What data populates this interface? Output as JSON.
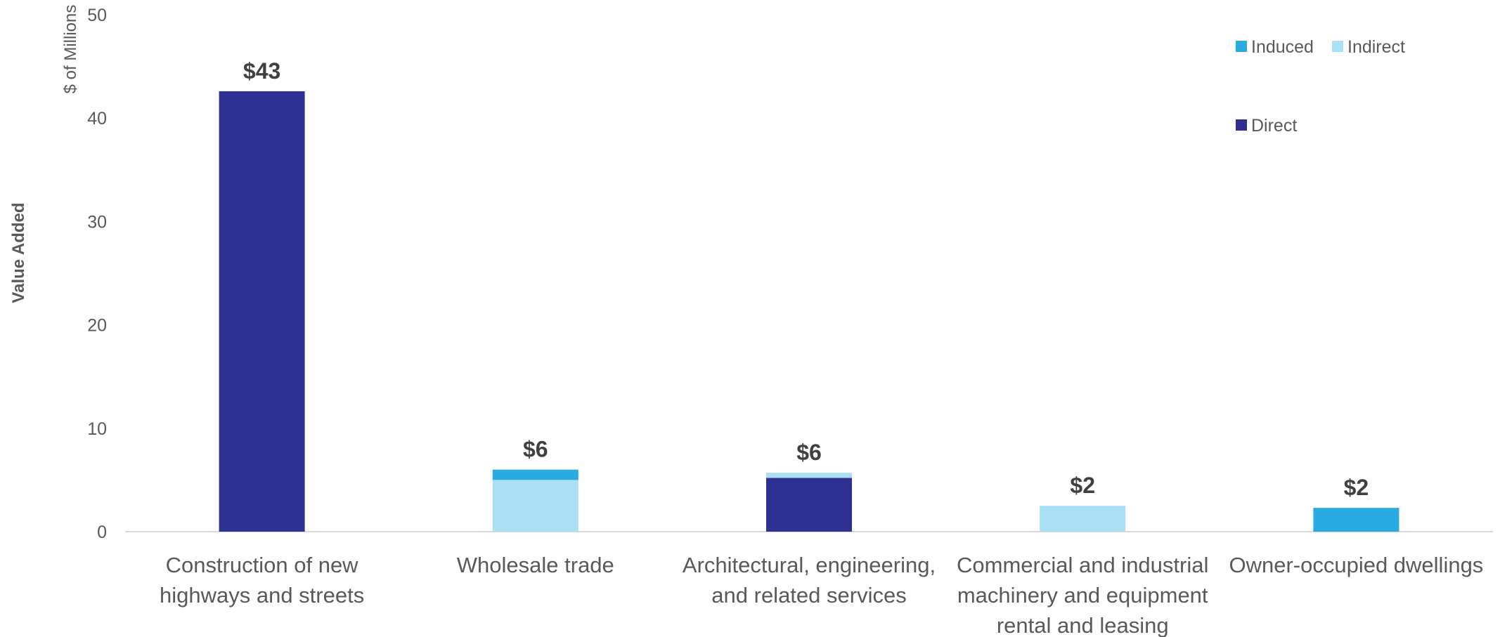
{
  "chart_data": {
    "type": "bar",
    "stacked": true,
    "yunit": "$ of Millions",
    "ylabel": "Value Added",
    "ylim": [
      0,
      50
    ],
    "yticks": [
      0,
      10,
      20,
      30,
      40,
      50
    ],
    "grid": false,
    "legend_position": "top-right",
    "categories": [
      [
        "Construction of new",
        "highways and streets"
      ],
      [
        "Wholesale trade"
      ],
      [
        "Architectural, engineering,",
        "and related services"
      ],
      [
        "Commercial and industrial",
        "machinery and equipment",
        "rental and leasing"
      ],
      [
        "Owner-occupied dwellings"
      ]
    ],
    "series": [
      {
        "name": "Direct",
        "color": "#2E3092",
        "values": [
          42.6,
          0,
          5.2,
          0,
          0
        ]
      },
      {
        "name": "Indirect",
        "color": "#ABDFF6",
        "values": [
          0,
          5.0,
          0.5,
          2.5,
          0
        ]
      },
      {
        "name": "Induced",
        "color": "#29ABE2",
        "values": [
          0,
          1.0,
          0,
          0,
          2.3
        ]
      }
    ],
    "data_labels": [
      "$43",
      "$6",
      "$6",
      "$2",
      "$2"
    ]
  }
}
